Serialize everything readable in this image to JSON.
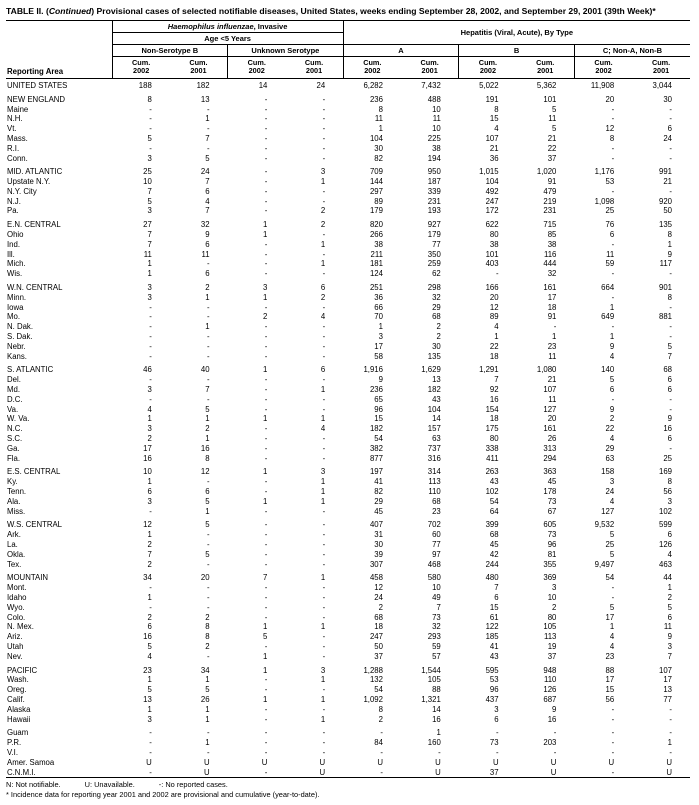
{
  "title": {
    "prefix": "TABLE II. (",
    "italic": "Continued",
    "suffix": ") Provisional cases of selected notifiable diseases, United States, weeks ending September 28, 2002, and September 29, 2001 (39th Week)*"
  },
  "header": {
    "reporting_area": "Reporting Area",
    "hflu_italic": "Haemophilus influenzae",
    "hflu_rest": ", Invasive",
    "age_group": "Age <5 Years",
    "hepatitis": "Hepatitis (Viral, Acute), By Type",
    "subgroups": {
      "non_serotype_b": "Non-Serotype B",
      "unknown_serotype": "Unknown Serotype",
      "hep_a": "A",
      "hep_b": "B",
      "hep_c": "C; Non-A, Non-B"
    },
    "cum": "Cum.",
    "y2002": "2002",
    "y2001": "2001"
  },
  "rows": [
    {
      "type": "us",
      "area": "UNITED STATES",
      "values": [
        "188",
        "182",
        "14",
        "24",
        "6,282",
        "7,432",
        "5,022",
        "5,362",
        "11,908",
        "3,044"
      ]
    },
    {
      "type": "spacer"
    },
    {
      "type": "region",
      "area": "NEW ENGLAND",
      "values": [
        "8",
        "13",
        "-",
        "-",
        "236",
        "488",
        "191",
        "101",
        "20",
        "30"
      ]
    },
    {
      "type": "state",
      "area": "Maine",
      "values": [
        "-",
        "-",
        "-",
        "-",
        "8",
        "10",
        "8",
        "5",
        "-",
        "-"
      ]
    },
    {
      "type": "state",
      "area": "N.H.",
      "values": [
        "-",
        "1",
        "-",
        "-",
        "11",
        "11",
        "15",
        "11",
        "-",
        "-"
      ]
    },
    {
      "type": "state",
      "area": "Vt.",
      "values": [
        "-",
        "-",
        "-",
        "-",
        "1",
        "10",
        "4",
        "5",
        "12",
        "6"
      ]
    },
    {
      "type": "state",
      "area": "Mass.",
      "values": [
        "5",
        "7",
        "-",
        "-",
        "104",
        "225",
        "107",
        "21",
        "8",
        "24"
      ]
    },
    {
      "type": "state",
      "area": "R.I.",
      "values": [
        "-",
        "-",
        "-",
        "-",
        "30",
        "38",
        "21",
        "22",
        "-",
        "-"
      ]
    },
    {
      "type": "state",
      "area": "Conn.",
      "values": [
        "3",
        "5",
        "-",
        "-",
        "82",
        "194",
        "36",
        "37",
        "-",
        "-"
      ]
    },
    {
      "type": "spacer"
    },
    {
      "type": "region",
      "area": "MID. ATLANTIC",
      "values": [
        "25",
        "24",
        "-",
        "3",
        "709",
        "950",
        "1,015",
        "1,020",
        "1,176",
        "991"
      ]
    },
    {
      "type": "state",
      "area": "Upstate N.Y.",
      "values": [
        "10",
        "7",
        "-",
        "1",
        "144",
        "187",
        "104",
        "91",
        "53",
        "21"
      ]
    },
    {
      "type": "state",
      "area": "N.Y. City",
      "values": [
        "7",
        "6",
        "-",
        "-",
        "297",
        "339",
        "492",
        "479",
        "-",
        "-"
      ]
    },
    {
      "type": "state",
      "area": "N.J.",
      "values": [
        "5",
        "4",
        "-",
        "-",
        "89",
        "231",
        "247",
        "219",
        "1,098",
        "920"
      ]
    },
    {
      "type": "state",
      "area": "Pa.",
      "values": [
        "3",
        "7",
        "-",
        "2",
        "179",
        "193",
        "172",
        "231",
        "25",
        "50"
      ]
    },
    {
      "type": "spacer"
    },
    {
      "type": "region",
      "area": "E.N. CENTRAL",
      "values": [
        "27",
        "32",
        "1",
        "2",
        "820",
        "927",
        "622",
        "715",
        "76",
        "135"
      ]
    },
    {
      "type": "state",
      "area": "Ohio",
      "values": [
        "7",
        "9",
        "1",
        "-",
        "266",
        "179",
        "80",
        "85",
        "6",
        "8"
      ]
    },
    {
      "type": "state",
      "area": "Ind.",
      "values": [
        "7",
        "6",
        "-",
        "1",
        "38",
        "77",
        "38",
        "38",
        "-",
        "1"
      ]
    },
    {
      "type": "state",
      "area": "Ill.",
      "values": [
        "11",
        "11",
        "-",
        "-",
        "211",
        "350",
        "101",
        "116",
        "11",
        "9"
      ]
    },
    {
      "type": "state",
      "area": "Mich.",
      "values": [
        "1",
        "-",
        "-",
        "1",
        "181",
        "259",
        "403",
        "444",
        "59",
        "117"
      ]
    },
    {
      "type": "state",
      "area": "Wis.",
      "values": [
        "1",
        "6",
        "-",
        "-",
        "124",
        "62",
        "-",
        "32",
        "-",
        "-"
      ]
    },
    {
      "type": "spacer"
    },
    {
      "type": "region",
      "area": "W.N. CENTRAL",
      "values": [
        "3",
        "2",
        "3",
        "6",
        "251",
        "298",
        "166",
        "161",
        "664",
        "901"
      ]
    },
    {
      "type": "state",
      "area": "Minn.",
      "values": [
        "3",
        "1",
        "1",
        "2",
        "36",
        "32",
        "20",
        "17",
        "-",
        "8"
      ]
    },
    {
      "type": "state",
      "area": "Iowa",
      "values": [
        "-",
        "-",
        "-",
        "-",
        "66",
        "29",
        "12",
        "18",
        "1",
        "-"
      ]
    },
    {
      "type": "state",
      "area": "Mo.",
      "values": [
        "-",
        "-",
        "2",
        "4",
        "70",
        "68",
        "89",
        "91",
        "649",
        "881"
      ]
    },
    {
      "type": "state",
      "area": "N. Dak.",
      "values": [
        "-",
        "1",
        "-",
        "-",
        "1",
        "2",
        "4",
        "-",
        "-",
        "-"
      ]
    },
    {
      "type": "state",
      "area": "S. Dak.",
      "values": [
        "-",
        "-",
        "-",
        "-",
        "3",
        "2",
        "1",
        "1",
        "1",
        "-"
      ]
    },
    {
      "type": "state",
      "area": "Nebr.",
      "values": [
        "-",
        "-",
        "-",
        "-",
        "17",
        "30",
        "22",
        "23",
        "9",
        "5"
      ]
    },
    {
      "type": "state",
      "area": "Kans.",
      "values": [
        "-",
        "-",
        "-",
        "-",
        "58",
        "135",
        "18",
        "11",
        "4",
        "7"
      ]
    },
    {
      "type": "spacer"
    },
    {
      "type": "region",
      "area": "S. ATLANTIC",
      "values": [
        "46",
        "40",
        "1",
        "6",
        "1,916",
        "1,629",
        "1,291",
        "1,080",
        "140",
        "68"
      ]
    },
    {
      "type": "state",
      "area": "Del.",
      "values": [
        "-",
        "-",
        "-",
        "-",
        "9",
        "13",
        "7",
        "21",
        "5",
        "6"
      ]
    },
    {
      "type": "state",
      "area": "Md.",
      "values": [
        "3",
        "7",
        "-",
        "1",
        "236",
        "182",
        "92",
        "107",
        "6",
        "6"
      ]
    },
    {
      "type": "state",
      "area": "D.C.",
      "values": [
        "-",
        "-",
        "-",
        "-",
        "65",
        "43",
        "16",
        "11",
        "-",
        "-"
      ]
    },
    {
      "type": "state",
      "area": "Va.",
      "values": [
        "4",
        "5",
        "-",
        "-",
        "96",
        "104",
        "154",
        "127",
        "9",
        "-"
      ]
    },
    {
      "type": "state",
      "area": "W. Va.",
      "values": [
        "1",
        "1",
        "1",
        "1",
        "15",
        "14",
        "18",
        "20",
        "2",
        "9"
      ]
    },
    {
      "type": "state",
      "area": "N.C.",
      "values": [
        "3",
        "2",
        "-",
        "4",
        "182",
        "157",
        "175",
        "161",
        "22",
        "16"
      ]
    },
    {
      "type": "state",
      "area": "S.C.",
      "values": [
        "2",
        "1",
        "-",
        "-",
        "54",
        "63",
        "80",
        "26",
        "4",
        "6"
      ]
    },
    {
      "type": "state",
      "area": "Ga.",
      "values": [
        "17",
        "16",
        "-",
        "-",
        "382",
        "737",
        "338",
        "313",
        "29",
        "-"
      ]
    },
    {
      "type": "state",
      "area": "Fla.",
      "values": [
        "16",
        "8",
        "-",
        "-",
        "877",
        "316",
        "411",
        "294",
        "63",
        "25"
      ]
    },
    {
      "type": "spacer"
    },
    {
      "type": "region",
      "area": "E.S. CENTRAL",
      "values": [
        "10",
        "12",
        "1",
        "3",
        "197",
        "314",
        "263",
        "363",
        "158",
        "169"
      ]
    },
    {
      "type": "state",
      "area": "Ky.",
      "values": [
        "1",
        "-",
        "-",
        "1",
        "41",
        "113",
        "43",
        "45",
        "3",
        "8"
      ]
    },
    {
      "type": "state",
      "area": "Tenn.",
      "values": [
        "6",
        "6",
        "-",
        "1",
        "82",
        "110",
        "102",
        "178",
        "24",
        "56"
      ]
    },
    {
      "type": "state",
      "area": "Ala.",
      "values": [
        "3",
        "5",
        "1",
        "1",
        "29",
        "68",
        "54",
        "73",
        "4",
        "3"
      ]
    },
    {
      "type": "state",
      "area": "Miss.",
      "values": [
        "-",
        "1",
        "-",
        "-",
        "45",
        "23",
        "64",
        "67",
        "127",
        "102"
      ]
    },
    {
      "type": "spacer"
    },
    {
      "type": "region",
      "area": "W.S. CENTRAL",
      "values": [
        "12",
        "5",
        "-",
        "-",
        "407",
        "702",
        "399",
        "605",
        "9,532",
        "599"
      ]
    },
    {
      "type": "state",
      "area": "Ark.",
      "values": [
        "1",
        "-",
        "-",
        "-",
        "31",
        "60",
        "68",
        "73",
        "5",
        "6"
      ]
    },
    {
      "type": "state",
      "area": "La.",
      "values": [
        "2",
        "-",
        "-",
        "-",
        "30",
        "77",
        "45",
        "96",
        "25",
        "126"
      ]
    },
    {
      "type": "state",
      "area": "Okla.",
      "values": [
        "7",
        "5",
        "-",
        "-",
        "39",
        "97",
        "42",
        "81",
        "5",
        "4"
      ]
    },
    {
      "type": "state",
      "area": "Tex.",
      "values": [
        "2",
        "-",
        "-",
        "-",
        "307",
        "468",
        "244",
        "355",
        "9,497",
        "463"
      ]
    },
    {
      "type": "spacer"
    },
    {
      "type": "region",
      "area": "MOUNTAIN",
      "values": [
        "34",
        "20",
        "7",
        "1",
        "458",
        "580",
        "480",
        "369",
        "54",
        "44"
      ]
    },
    {
      "type": "state",
      "area": "Mont.",
      "values": [
        "-",
        "-",
        "-",
        "-",
        "12",
        "10",
        "7",
        "3",
        "-",
        "1"
      ]
    },
    {
      "type": "state",
      "area": "Idaho",
      "values": [
        "1",
        "-",
        "-",
        "-",
        "24",
        "49",
        "6",
        "10",
        "-",
        "2"
      ]
    },
    {
      "type": "state",
      "area": "Wyo.",
      "values": [
        "-",
        "-",
        "-",
        "-",
        "2",
        "7",
        "15",
        "2",
        "5",
        "5"
      ]
    },
    {
      "type": "state",
      "area": "Colo.",
      "values": [
        "2",
        "2",
        "-",
        "-",
        "68",
        "73",
        "61",
        "80",
        "17",
        "6"
      ]
    },
    {
      "type": "state",
      "area": "N. Mex.",
      "values": [
        "6",
        "8",
        "1",
        "1",
        "18",
        "32",
        "122",
        "105",
        "1",
        "11"
      ]
    },
    {
      "type": "state",
      "area": "Ariz.",
      "values": [
        "16",
        "8",
        "5",
        "-",
        "247",
        "293",
        "185",
        "113",
        "4",
        "9"
      ]
    },
    {
      "type": "state",
      "area": "Utah",
      "values": [
        "5",
        "2",
        "-",
        "-",
        "50",
        "59",
        "41",
        "19",
        "4",
        "3"
      ]
    },
    {
      "type": "state",
      "area": "Nev.",
      "values": [
        "4",
        "-",
        "1",
        "-",
        "37",
        "57",
        "43",
        "37",
        "23",
        "7"
      ]
    },
    {
      "type": "spacer"
    },
    {
      "type": "region",
      "area": "PACIFIC",
      "values": [
        "23",
        "34",
        "1",
        "3",
        "1,288",
        "1,544",
        "595",
        "948",
        "88",
        "107"
      ]
    },
    {
      "type": "state",
      "area": "Wash.",
      "values": [
        "1",
        "1",
        "-",
        "1",
        "132",
        "105",
        "53",
        "110",
        "17",
        "17"
      ]
    },
    {
      "type": "state",
      "area": "Oreg.",
      "values": [
        "5",
        "5",
        "-",
        "-",
        "54",
        "88",
        "96",
        "126",
        "15",
        "13"
      ]
    },
    {
      "type": "state",
      "area": "Calif.",
      "values": [
        "13",
        "26",
        "1",
        "1",
        "1,092",
        "1,321",
        "437",
        "687",
        "56",
        "77"
      ]
    },
    {
      "type": "state",
      "area": "Alaska",
      "values": [
        "1",
        "1",
        "-",
        "-",
        "8",
        "14",
        "3",
        "9",
        "-",
        "-"
      ]
    },
    {
      "type": "state",
      "area": "Hawaii",
      "values": [
        "3",
        "1",
        "-",
        "1",
        "2",
        "16",
        "6",
        "16",
        "-",
        "-"
      ]
    },
    {
      "type": "spacer"
    },
    {
      "type": "territory",
      "area": "Guam",
      "values": [
        "-",
        "-",
        "-",
        "-",
        "-",
        "1",
        "-",
        "-",
        "-",
        "-"
      ]
    },
    {
      "type": "territory",
      "area": "P.R.",
      "values": [
        "-",
        "1",
        "-",
        "-",
        "84",
        "160",
        "73",
        "203",
        "-",
        "1"
      ]
    },
    {
      "type": "territory",
      "area": "V.I.",
      "values": [
        "-",
        "-",
        "-",
        "-",
        "-",
        "-",
        "-",
        "-",
        "-",
        "-"
      ]
    },
    {
      "type": "territory",
      "area": "Amer. Samoa",
      "values": [
        "U",
        "U",
        "U",
        "U",
        "U",
        "U",
        "U",
        "U",
        "U",
        "U"
      ]
    },
    {
      "type": "territory",
      "area": "C.N.M.I.",
      "values": [
        "-",
        "U",
        "-",
        "U",
        "-",
        "U",
        "37",
        "U",
        "-",
        "U"
      ]
    }
  ],
  "footnotes": {
    "line1a": "N: Not notifiable.",
    "line1b": "U: Unavailable.",
    "line1c": "-: No reported cases.",
    "line2": "* Incidence data for reporting year 2001 and 2002 are provisional and cumulative (year-to-date)."
  }
}
